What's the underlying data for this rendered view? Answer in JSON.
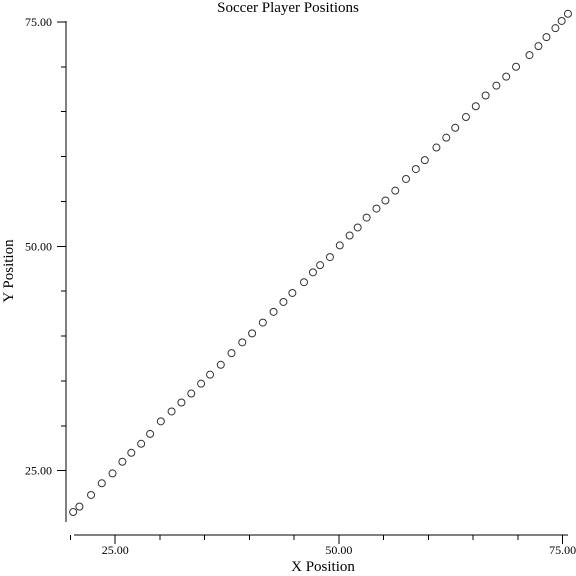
{
  "chart_data": {
    "type": "scatter",
    "title": "Soccer Player Positions",
    "xlabel": "X Position",
    "ylabel": "Y Position",
    "xlim": [
      19.5,
      76.5
    ],
    "ylim": [
      19.4,
      76.1
    ],
    "x_major_ticks": [
      25,
      50,
      75
    ],
    "x_minor_ticks": [
      20,
      30,
      35,
      40,
      45,
      55,
      60,
      65,
      70
    ],
    "y_major_ticks": [
      25,
      50,
      75
    ],
    "y_minor_ticks": [
      30,
      35,
      40,
      45,
      55,
      60,
      65,
      70
    ],
    "x_tick_labels": [
      "25.00",
      "50.00",
      "75.00"
    ],
    "y_tick_labels": [
      "25.00",
      "50.00",
      "75.00"
    ],
    "grid": false,
    "marker": "open-circle",
    "marker_color": "#333333",
    "x": [
      20.3,
      21.0,
      22.3,
      23.5,
      24.7,
      25.8,
      26.8,
      27.9,
      28.9,
      30.1,
      31.3,
      32.4,
      33.5,
      34.6,
      35.6,
      36.8,
      38.0,
      39.2,
      40.3,
      41.5,
      42.7,
      43.8,
      44.8,
      46.1,
      47.1,
      47.9,
      49.0,
      50.1,
      51.2,
      52.1,
      53.1,
      54.2,
      55.2,
      56.3,
      57.5,
      58.6,
      59.6,
      60.9,
      62.0,
      63.0,
      64.2,
      65.3,
      66.4,
      67.6,
      68.7,
      69.8,
      71.3,
      72.3,
      73.2,
      74.2,
      74.9,
      75.6
    ],
    "y": [
      20.4,
      21.0,
      22.3,
      23.6,
      24.7,
      26.0,
      27.0,
      28.0,
      29.1,
      30.5,
      31.6,
      32.6,
      33.6,
      34.7,
      35.7,
      36.8,
      38.1,
      39.3,
      40.3,
      41.5,
      42.7,
      43.8,
      44.8,
      46.0,
      47.1,
      47.9,
      48.8,
      50.1,
      51.2,
      52.1,
      53.2,
      54.2,
      55.1,
      56.2,
      57.5,
      58.6,
      59.6,
      61.0,
      62.1,
      63.2,
      64.4,
      65.6,
      66.8,
      67.9,
      68.9,
      70.0,
      71.3,
      72.3,
      73.3,
      74.3,
      75.1,
      75.9
    ]
  }
}
